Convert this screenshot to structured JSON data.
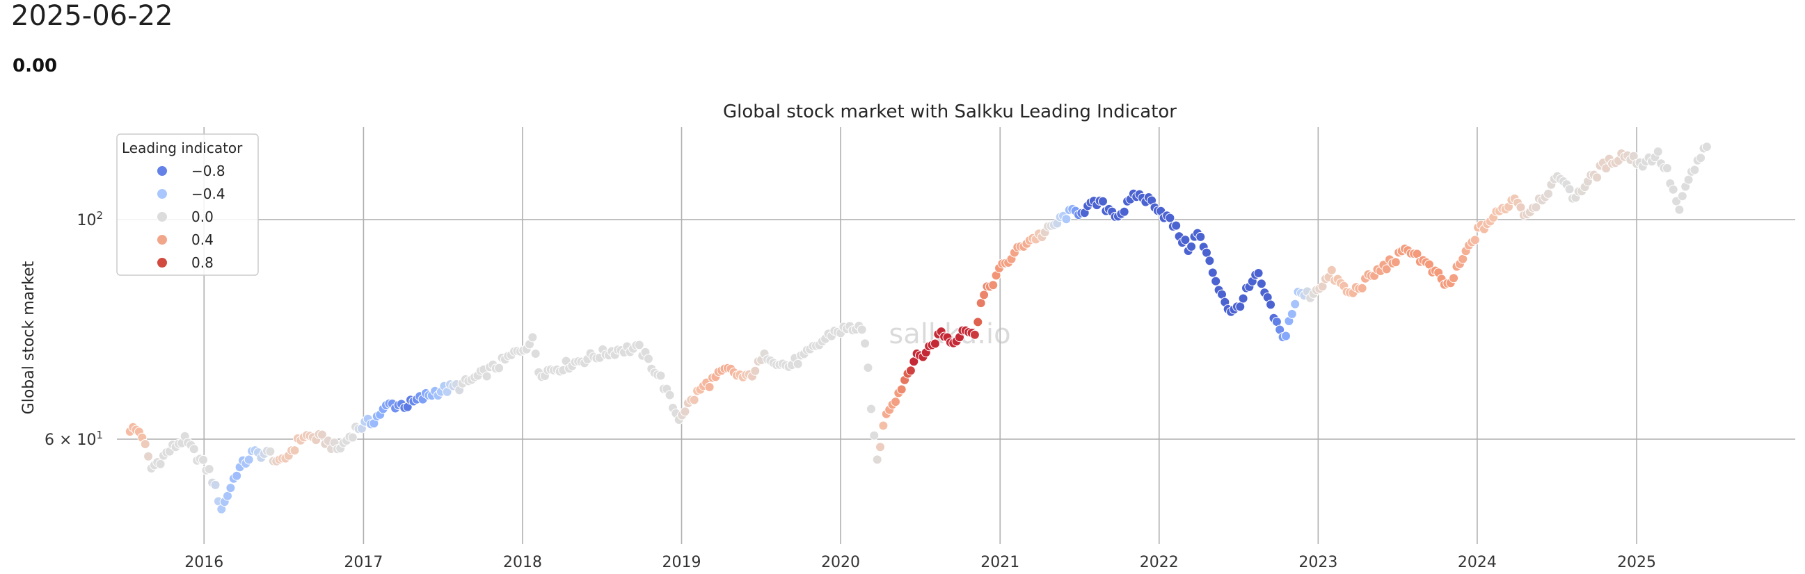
{
  "header": {
    "date": "2025-06-22",
    "value": "0.00"
  },
  "watermark": "salkku.io",
  "chart_data": {
    "type": "scatter",
    "title": "Global stock market with Salkku Leading Indicator",
    "xlabel": "",
    "ylabel": "Global stock market",
    "yscale": "log",
    "ylim": [
      47,
      124
    ],
    "xlim": [
      "2015-06-15",
      "2025-12-31"
    ],
    "grid": "x and y major",
    "x_ticks": [
      "2016",
      "2017",
      "2018",
      "2019",
      "2020",
      "2021",
      "2022",
      "2023",
      "2024",
      "2025"
    ],
    "y_ticks": [
      {
        "value": 60,
        "base": "6 × 10",
        "exp": "1"
      },
      {
        "value": 100,
        "base": "10",
        "exp": "2"
      }
    ],
    "colormap": "coolwarm",
    "color_range": [
      -1,
      1
    ],
    "legend": {
      "title": "Leading indicator",
      "placement": "top-left",
      "entries": [
        {
          "label": "−0.8",
          "value": -0.8,
          "color": "#6381e6"
        },
        {
          "label": "−0.4",
          "value": -0.4,
          "color": "#aac7fd"
        },
        {
          "label": "0.0",
          "value": 0.0,
          "color": "#dddcdc"
        },
        {
          "label": "0.4",
          "value": 0.4,
          "color": "#f1a68a"
        },
        {
          "label": "0.8",
          "value": 0.8,
          "color": "#d1493f"
        }
      ]
    },
    "anchors": [
      [
        "2015-07-15",
        61.5,
        0.3
      ],
      [
        "2015-08-10",
        61.0,
        0.3
      ],
      [
        "2015-09-01",
        56.0,
        0.0
      ],
      [
        "2015-10-15",
        58.5,
        0.0
      ],
      [
        "2015-11-15",
        60.0,
        0.0
      ],
      [
        "2016-01-15",
        55.5,
        0.0
      ],
      [
        "2016-02-11",
        51.0,
        -0.3
      ],
      [
        "2016-03-15",
        55.5,
        -0.4
      ],
      [
        "2016-04-20",
        58.0,
        -0.3
      ],
      [
        "2016-06-01",
        58.0,
        0.0
      ],
      [
        "2016-06-24",
        56.5,
        0.2
      ],
      [
        "2016-08-15",
        60.5,
        0.2
      ],
      [
        "2016-10-01",
        60.0,
        0.1
      ],
      [
        "2016-11-04",
        58.5,
        0.0
      ],
      [
        "2016-12-15",
        61.5,
        0.0
      ],
      [
        "2017-01-20",
        62.5,
        -0.4
      ],
      [
        "2017-03-01",
        65.0,
        -0.6
      ],
      [
        "2017-04-15",
        65.0,
        -0.8
      ],
      [
        "2017-06-15",
        67.0,
        -0.4
      ],
      [
        "2017-08-15",
        68.0,
        0.0
      ],
      [
        "2017-11-01",
        71.0,
        0.0
      ],
      [
        "2018-01-26",
        75.5,
        0.0
      ],
      [
        "2018-02-08",
        70.0,
        0.0
      ],
      [
        "2018-04-01",
        71.0,
        0.0
      ],
      [
        "2018-06-01",
        72.5,
        0.0
      ],
      [
        "2018-08-15",
        74.0,
        0.0
      ],
      [
        "2018-09-28",
        74.0,
        0.0
      ],
      [
        "2018-11-15",
        69.0,
        0.0
      ],
      [
        "2018-12-24",
        63.0,
        0.0
      ],
      [
        "2019-02-15",
        67.5,
        0.3
      ],
      [
        "2019-04-15",
        70.5,
        0.4
      ],
      [
        "2019-05-31",
        69.0,
        0.2
      ],
      [
        "2019-07-15",
        73.0,
        0.0
      ],
      [
        "2019-09-01",
        71.0,
        0.0
      ],
      [
        "2019-10-15",
        73.0,
        0.0
      ],
      [
        "2019-12-15",
        77.0,
        0.0
      ],
      [
        "2020-02-15",
        78.0,
        0.0
      ],
      [
        "2020-03-01",
        73.0,
        0.0
      ],
      [
        "2020-03-23",
        56.5,
        0.0
      ],
      [
        "2020-04-15",
        64.0,
        0.4
      ],
      [
        "2020-05-15",
        67.0,
        0.5
      ],
      [
        "2020-06-15",
        72.0,
        0.9
      ],
      [
        "2020-07-15",
        73.5,
        0.9
      ],
      [
        "2020-08-20",
        77.0,
        0.9
      ],
      [
        "2020-09-15",
        75.0,
        0.9
      ],
      [
        "2020-10-10",
        78.0,
        0.9
      ],
      [
        "2020-11-01",
        76.0,
        0.9
      ],
      [
        "2020-11-20",
        83.0,
        0.6
      ],
      [
        "2021-01-01",
        89.0,
        0.5
      ],
      [
        "2021-03-01",
        95.0,
        0.4
      ],
      [
        "2021-04-15",
        97.0,
        0.1
      ],
      [
        "2021-06-01",
        101.0,
        -0.3
      ],
      [
        "2021-07-15",
        102.5,
        -0.9
      ],
      [
        "2021-08-15",
        104.0,
        -0.9
      ],
      [
        "2021-10-01",
        101.0,
        -0.9
      ],
      [
        "2021-11-10",
        106.0,
        -0.9
      ],
      [
        "2021-12-20",
        104.0,
        -0.9
      ],
      [
        "2022-02-01",
        99.0,
        -0.9
      ],
      [
        "2022-03-08",
        93.5,
        -0.9
      ],
      [
        "2022-04-01",
        97.0,
        -0.9
      ],
      [
        "2022-05-15",
        86.0,
        -0.9
      ],
      [
        "2022-06-17",
        80.0,
        -0.9
      ],
      [
        "2022-08-15",
        88.0,
        -0.9
      ],
      [
        "2022-09-15",
        81.0,
        -0.9
      ],
      [
        "2022-10-13",
        75.5,
        -0.6
      ],
      [
        "2022-11-15",
        84.0,
        -0.3
      ],
      [
        "2022-12-15",
        84.0,
        0.0
      ],
      [
        "2023-02-01",
        88.0,
        0.2
      ],
      [
        "2023-03-15",
        84.0,
        0.3
      ],
      [
        "2023-05-01",
        87.5,
        0.4
      ],
      [
        "2023-07-31",
        93.5,
        0.5
      ],
      [
        "2023-10-27",
        85.5,
        0.5
      ],
      [
        "2023-12-31",
        97.0,
        0.3
      ],
      [
        "2024-03-31",
        105.5,
        0.2
      ],
      [
        "2024-04-19",
        101.0,
        0.1
      ],
      [
        "2024-07-15",
        111.0,
        0.0
      ],
      [
        "2024-08-05",
        105.0,
        0.0
      ],
      [
        "2024-10-15",
        113.0,
        0.1
      ],
      [
        "2024-12-01",
        116.5,
        0.1
      ],
      [
        "2025-01-15",
        114.0,
        0.0
      ],
      [
        "2025-02-18",
        116.5,
        0.0
      ],
      [
        "2025-03-15",
        111.0,
        0.0
      ],
      [
        "2025-04-08",
        102.0,
        0.0
      ],
      [
        "2025-05-01",
        110.0,
        0.0
      ],
      [
        "2025-06-13",
        119.0,
        0.0
      ]
    ]
  }
}
